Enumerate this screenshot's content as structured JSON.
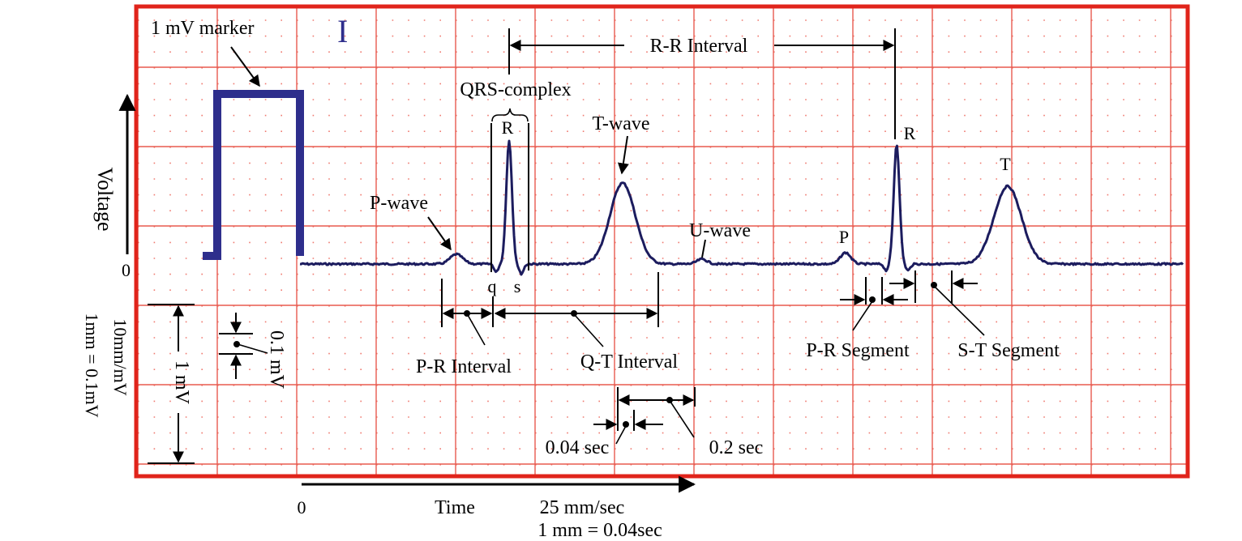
{
  "colors": {
    "paper_border": "#e0241b",
    "grid_major": "#e85a4f",
    "grid_dots": "#ef7a70",
    "trace": "#1c1c5e",
    "marker": "#2e2e8c",
    "background": "#ffffff",
    "text": "#000000"
  },
  "labels": {
    "lead": "I",
    "marker": "1 mV marker",
    "rr_interval": "R-R  Interval",
    "qrs_complex": "QRS-complex",
    "r1": "R",
    "t_wave": "T-wave",
    "p_wave": "P-wave",
    "u_wave": "U-wave",
    "q": "q",
    "s": "s",
    "p2": "P",
    "r2": "R",
    "t2": "T",
    "pr_interval": "P-R  Interval",
    "qt_interval": "Q-T  Interval",
    "pr_segment": "P-R  Segment",
    "st_segment": "S-T  Segment",
    "sec_004": "0.04 sec",
    "sec_02": "0.2 sec",
    "voltage": "Voltage",
    "zero_v": "0",
    "gain_line1": "10mm/mV",
    "gain_line2": "1mm = 0.1mV",
    "one_mv": "1 mV",
    "point_one_mv": "0.1 mV",
    "zero_t": "0",
    "time": "Time",
    "speed_line1": "25 mm/sec",
    "speed_line2": "1 mm = 0.04sec"
  }
}
